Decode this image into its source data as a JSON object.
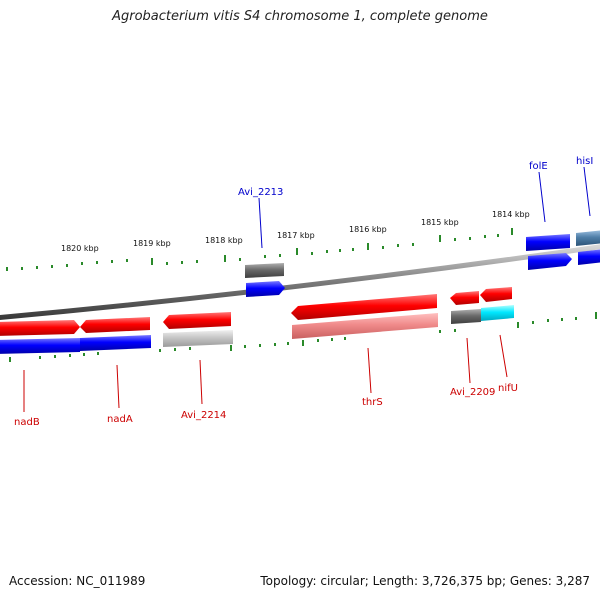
{
  "title": "Agrobacterium vitis S4 chromosome 1, complete genome",
  "accession": "Accession: NC_011989",
  "topology": "Topology: circular; Length: 3,726,375 bp; Genes: 3,287",
  "colors": {
    "forward": "#e00000",
    "reverse": "#0000e0",
    "pseudo": "#7a7a7a",
    "light_pseudo": "#c8c8c8",
    "cyan": "#00e5ff",
    "pink": "#e88080",
    "steel": "#4f7fa8",
    "ticks": "#2a8a2a",
    "label_red": "#cc0000",
    "label_blue": "#0000cc"
  },
  "scale_labels": [
    "1820 kbp",
    "1819 kbp",
    "1818 kbp",
    "1817 kbp",
    "1816 kbp",
    "1815 kbp",
    "1814 kbp"
  ],
  "gene_labels": [
    {
      "text": "nadB",
      "color": "label_red"
    },
    {
      "text": "nadA",
      "color": "label_red"
    },
    {
      "text": "Avi_2214",
      "color": "label_red"
    },
    {
      "text": "thrS",
      "color": "label_red"
    },
    {
      "text": "Avi_2209",
      "color": "label_red"
    },
    {
      "text": "nifU",
      "color": "label_red"
    },
    {
      "text": "Avi_2213",
      "color": "label_blue"
    },
    {
      "text": "folE",
      "color": "label_blue"
    },
    {
      "text": "hisI",
      "color": "label_blue"
    }
  ]
}
